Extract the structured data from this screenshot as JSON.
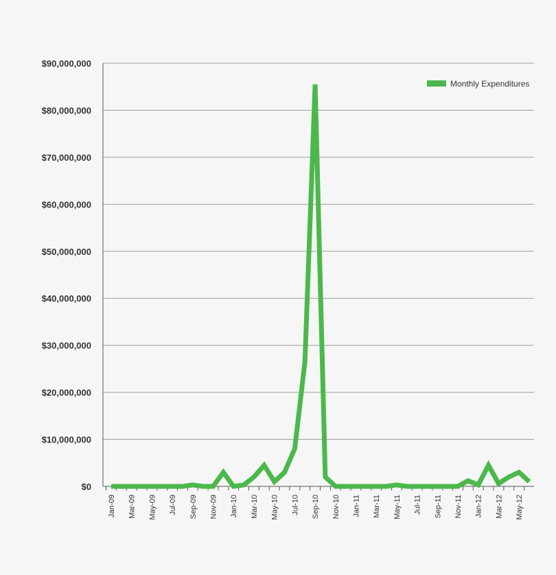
{
  "chart_data": {
    "type": "line",
    "title": "",
    "xlabel": "",
    "ylabel": "",
    "ylim": [
      0,
      90000000
    ],
    "yticks": [
      0,
      10000000,
      20000000,
      30000000,
      40000000,
      50000000,
      60000000,
      70000000,
      80000000,
      90000000
    ],
    "ytick_labels": [
      "$0",
      "$10,000,000",
      "$20,000,000",
      "$30,000,000",
      "$40,000,000",
      "$50,000,000",
      "$60,000,000",
      "$70,000,000",
      "$80,000,000",
      "$90,000,000"
    ],
    "grid": "horizontal",
    "legend_position": "top-right",
    "categories": [
      "Jan-09",
      "Feb-09",
      "Mar-09",
      "Apr-09",
      "May-09",
      "Jun-09",
      "Jul-09",
      "Aug-09",
      "Sep-09",
      "Oct-09",
      "Nov-09",
      "Dec-09",
      "Jan-10",
      "Feb-10",
      "Mar-10",
      "Apr-10",
      "May-10",
      "Jun-10",
      "Jul-10",
      "Aug-10",
      "Sep-10",
      "Oct-10",
      "Nov-10",
      "Dec-10",
      "Jan-11",
      "Feb-11",
      "Mar-11",
      "Apr-11",
      "May-11",
      "Jun-11",
      "Jul-11",
      "Aug-11",
      "Sep-11",
      "Oct-11",
      "Nov-11",
      "Dec-11",
      "Jan-12",
      "Feb-12",
      "Mar-12",
      "Apr-12",
      "May-12",
      "Jun-12"
    ],
    "xtick_labels": [
      "Jan-09",
      "Mar-09",
      "May-09",
      "Jul-09",
      "Sep-09",
      "Nov-09",
      "Jan-10",
      "Mar-10",
      "May-10",
      "Jul-10",
      "Sep-10",
      "Nov-10",
      "Jan-11",
      "Mar-11",
      "May-11",
      "Jul-11",
      "Sep-11",
      "Nov-11",
      "Jan-12",
      "Mar-12",
      "May-12"
    ],
    "series": [
      {
        "name": "Monthly Expenditures",
        "color": "#4cb84c",
        "values": [
          0,
          0,
          0,
          0,
          0,
          0,
          0,
          0,
          300000,
          0,
          0,
          3000000,
          0,
          300000,
          2000000,
          4500000,
          1000000,
          3000000,
          8000000,
          26500000,
          85500000,
          2000000,
          0,
          0,
          0,
          0,
          0,
          0,
          300000,
          0,
          0,
          0,
          0,
          0,
          0,
          1200000,
          300000,
          4500000,
          600000,
          2000000,
          3000000,
          1000000
        ]
      }
    ]
  }
}
